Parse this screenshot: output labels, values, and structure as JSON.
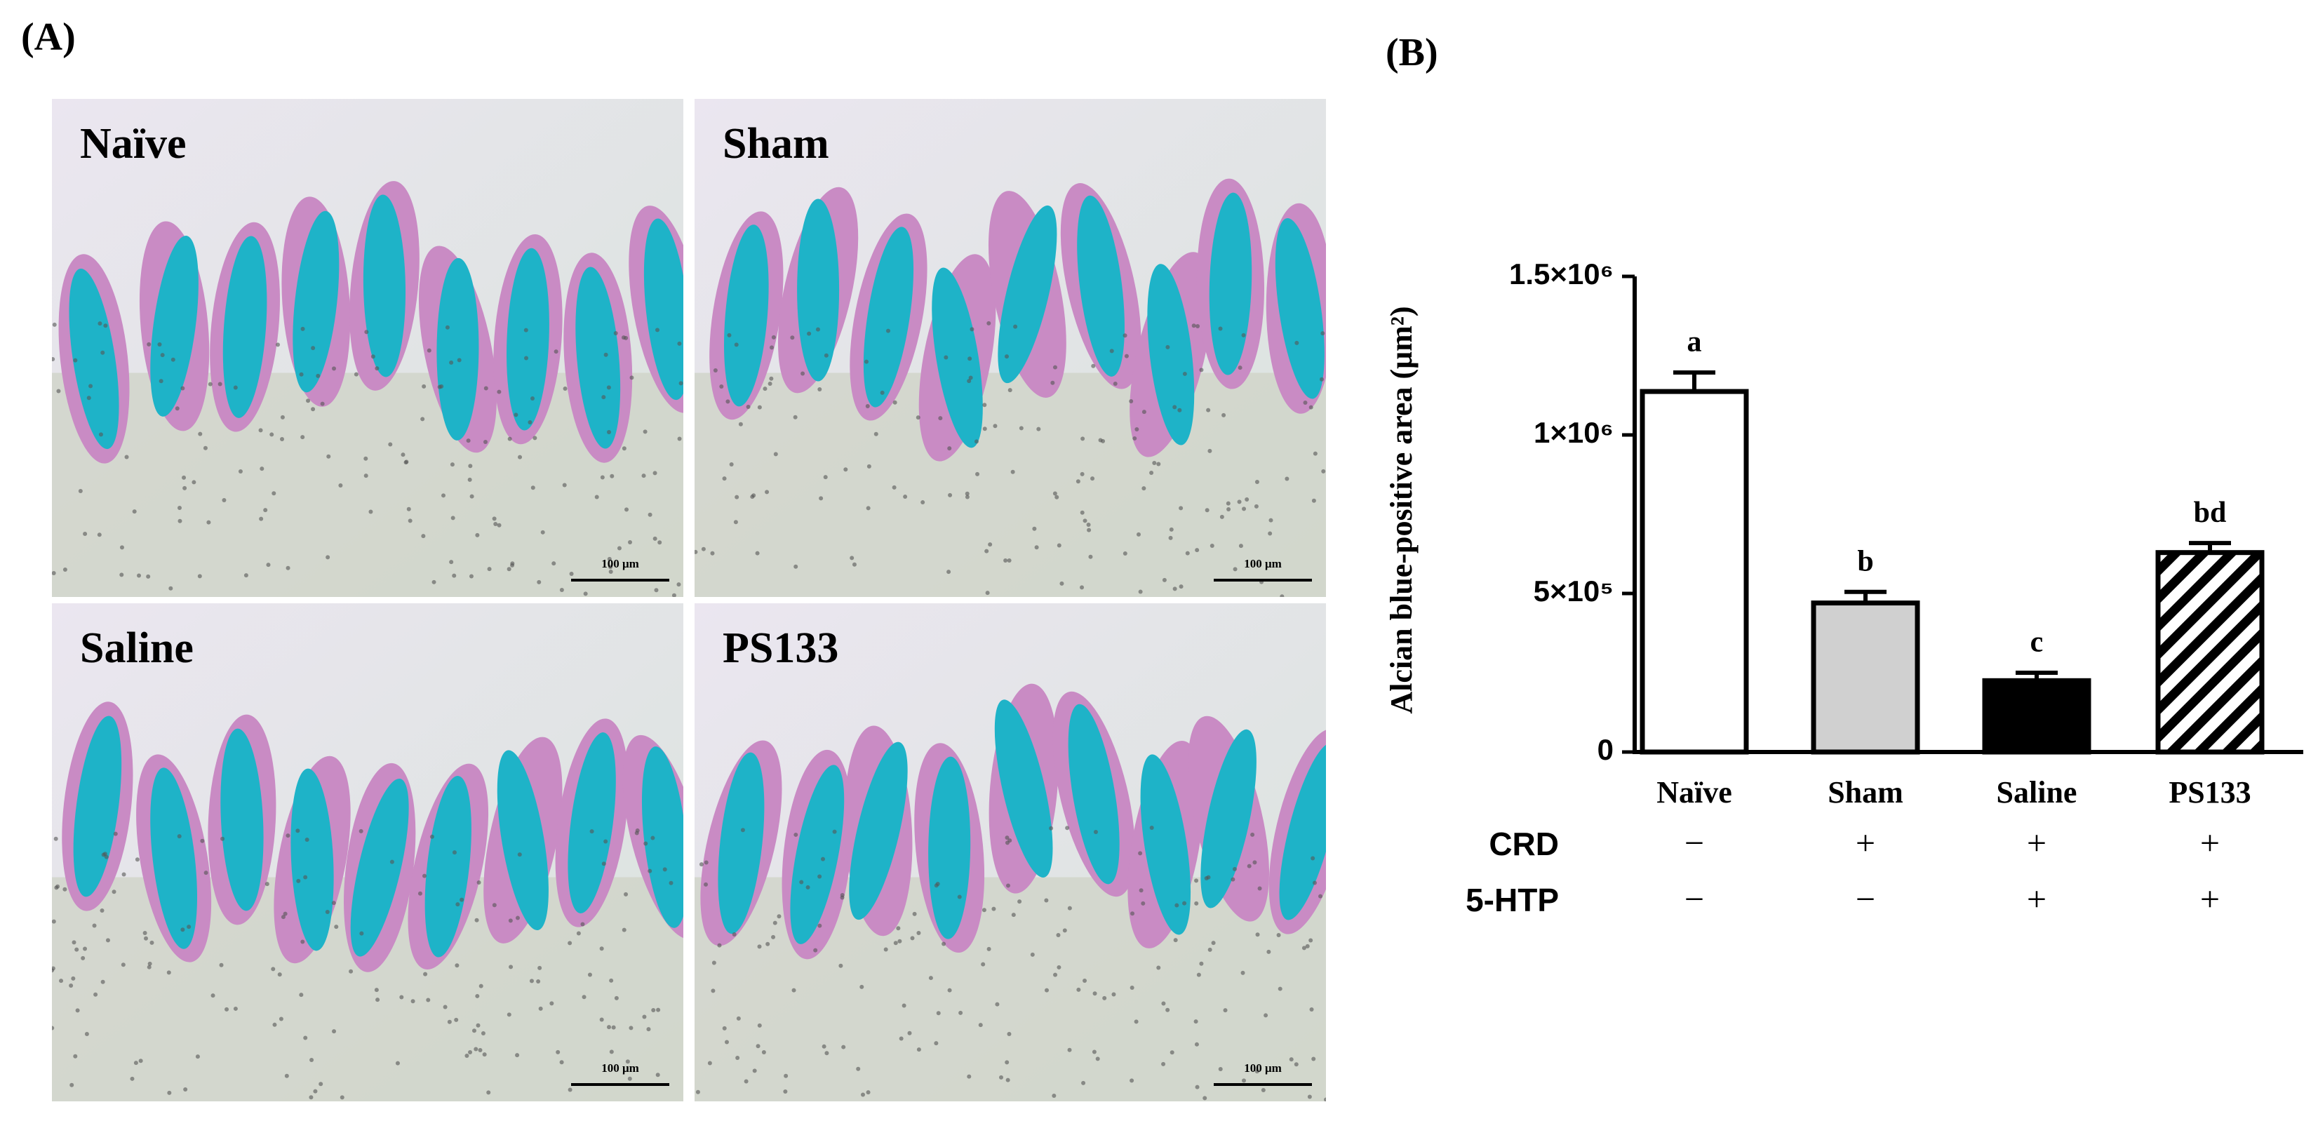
{
  "panel_a": {
    "label": "(A)",
    "images": [
      {
        "label": "Naïve",
        "scale_bar": "100 μm"
      },
      {
        "label": "Sham",
        "scale_bar": "100 μm"
      },
      {
        "label": "Saline",
        "scale_bar": "100 μm"
      },
      {
        "label": "PS133",
        "scale_bar": "100 μm"
      }
    ]
  },
  "chart_data": {
    "type": "bar",
    "panel_label": "(B)",
    "y_label": "Alcian blue-positive area (μm²)",
    "categories": [
      "Naïve",
      "Sham",
      "Saline",
      "PS133"
    ],
    "values": [
      1137000,
      470000,
      225000,
      629000
    ],
    "errors": [
      60000,
      35000,
      25000,
      30000
    ],
    "annotations": [
      "a",
      "b",
      "c",
      "bd"
    ],
    "colors": [
      "#ffffff",
      "#d0d0d0",
      "#000000",
      "#ffffff"
    ],
    "hatch": [
      false,
      false,
      false,
      true
    ],
    "ylim": [
      0,
      1500000
    ],
    "yticks": [
      0,
      {
        "value": 500000,
        "label": "5×10⁵"
      },
      {
        "value": 1000000,
        "label": "1×10⁶"
      },
      {
        "value": 1500000,
        "label": "1.5×10⁶"
      }
    ],
    "treatments": [
      {
        "name": "CRD",
        "values": [
          "−",
          "+",
          "+",
          "+"
        ]
      },
      {
        "name": "5-HTP",
        "values": [
          "−",
          "−",
          "+",
          "+"
        ]
      }
    ]
  }
}
